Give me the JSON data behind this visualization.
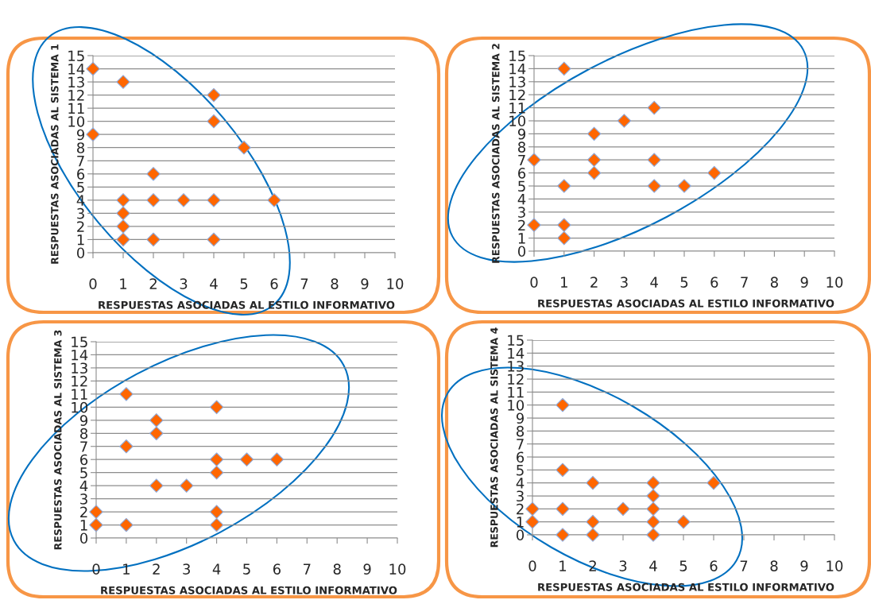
{
  "chart_data": [
    {
      "type": "scatter",
      "xlabel": "RESPUESTAS ASOCIADAS AL ESTILO INFORMATIVO",
      "ylabel": "RESPUESTAS ASOCIADAS AL SISTEMA 1",
      "color": "#ff6600",
      "marker": "diamond",
      "grid": "y",
      "xlim": [
        0,
        10
      ],
      "ylim": [
        0,
        15
      ],
      "xticks": [
        0,
        1,
        2,
        3,
        4,
        5,
        6,
        7,
        8,
        9,
        10
      ],
      "yticks": [
        0,
        1,
        2,
        3,
        4,
        5,
        6,
        7,
        8,
        9,
        10,
        11,
        12,
        13,
        14,
        15
      ],
      "x": [
        0,
        1,
        4,
        4,
        0,
        5,
        2,
        1,
        2,
        3,
        4,
        6,
        1,
        1,
        1,
        2,
        4
      ],
      "values": [
        14,
        13,
        12,
        10,
        9,
        8,
        6,
        4,
        4,
        4,
        4,
        4,
        3,
        2,
        1,
        1,
        1
      ]
    },
    {
      "type": "scatter",
      "xlabel": "RESPUESTAS ASOCIADAS AL ESTILO INFORMATIVO",
      "ylabel": "RESPUESTAS ASOCIADAS AL SISTEMA 2",
      "color": "#ff6600",
      "marker": "diamond",
      "grid": "y",
      "xlim": [
        0,
        10
      ],
      "ylim": [
        0,
        15
      ],
      "xticks": [
        0,
        1,
        2,
        3,
        4,
        5,
        6,
        7,
        8,
        9,
        10
      ],
      "yticks": [
        0,
        1,
        2,
        3,
        4,
        5,
        6,
        7,
        8,
        9,
        10,
        11,
        12,
        13,
        14,
        15
      ],
      "x": [
        1,
        4,
        3,
        2,
        0,
        2,
        4,
        2,
        6,
        1,
        4,
        5,
        0,
        1,
        1
      ],
      "values": [
        14,
        11,
        10,
        9,
        7,
        7,
        7,
        6,
        6,
        5,
        5,
        5,
        2,
        2,
        1
      ]
    },
    {
      "type": "scatter",
      "xlabel": "RESPUESTAS ASOCIADAS AL ESTILO INFORMATIVO",
      "ylabel": "RESPUESTAS ASOCIADAS AL SISTEMA 3",
      "color": "#ff6600",
      "marker": "diamond",
      "grid": "y",
      "xlim": [
        0,
        10
      ],
      "ylim": [
        0,
        15
      ],
      "xticks": [
        0,
        1,
        2,
        3,
        4,
        5,
        6,
        7,
        8,
        9,
        10
      ],
      "yticks": [
        0,
        1,
        2,
        3,
        4,
        5,
        6,
        7,
        8,
        9,
        10,
        11,
        12,
        13,
        14,
        15
      ],
      "x": [
        1,
        4,
        2,
        2,
        1,
        4,
        5,
        6,
        4,
        2,
        3,
        0,
        4,
        0,
        1,
        4
      ],
      "values": [
        11,
        10,
        9,
        8,
        7,
        6,
        6,
        6,
        5,
        4,
        4,
        2,
        2,
        1,
        1,
        1
      ]
    },
    {
      "type": "scatter",
      "xlabel": "RESPUESTAS ASOCIADAS AL ESTILO INFORMATIVO",
      "ylabel": "RESPUESTAS ASOCIADAS AL SISTEMA 4",
      "color": "#ff6600",
      "marker": "diamond",
      "grid": "y",
      "xlim": [
        0,
        10
      ],
      "ylim": [
        0,
        15
      ],
      "xticks": [
        0,
        1,
        2,
        3,
        4,
        5,
        6,
        7,
        8,
        9,
        10
      ],
      "yticks": [
        0,
        1,
        2,
        3,
        4,
        5,
        6,
        7,
        8,
        9,
        10,
        11,
        12,
        13,
        14,
        15
      ],
      "x": [
        1,
        1,
        2,
        4,
        6,
        4,
        0,
        1,
        3,
        4,
        0,
        2,
        4,
        5,
        1,
        2,
        4
      ],
      "values": [
        10,
        5,
        4,
        4,
        4,
        3,
        2,
        2,
        2,
        2,
        1,
        1,
        1,
        1,
        0,
        0,
        0
      ]
    }
  ]
}
